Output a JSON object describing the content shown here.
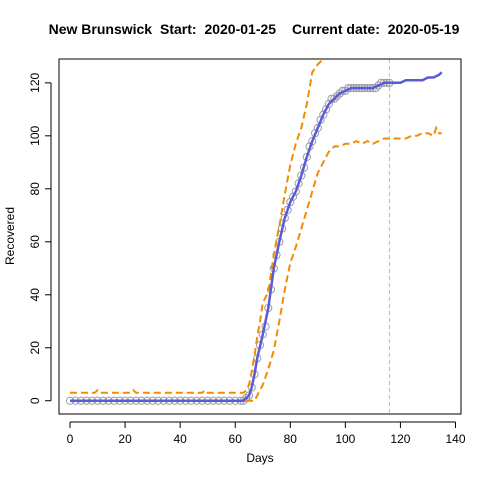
{
  "chart_data": {
    "type": "line",
    "title_parts": {
      "region": "New Brunswick",
      "start_label": "Start:",
      "start_date": "2020-01-25",
      "current_label": "Current date:",
      "current_date": "2020-05-19"
    },
    "xlabel": "Days",
    "ylabel": "Recovered",
    "xlim": [
      -4,
      142
    ],
    "ylim": [
      -5,
      129
    ],
    "x_ticks": [
      0,
      20,
      40,
      60,
      80,
      100,
      120,
      140
    ],
    "y_ticks": [
      0,
      20,
      40,
      60,
      80,
      100,
      120
    ],
    "current_day": 116,
    "colors": {
      "observed": "#9a9aaa",
      "fit": "#5b5bd6",
      "bounds": "#f28c00",
      "current_line": "#bbbbbb"
    },
    "series": [
      {
        "role": "observed",
        "x": [
          0,
          2,
          4,
          6,
          8,
          10,
          12,
          14,
          16,
          18,
          20,
          22,
          24,
          26,
          28,
          30,
          32,
          34,
          36,
          38,
          40,
          42,
          44,
          46,
          48,
          50,
          52,
          54,
          56,
          58,
          60,
          62,
          63,
          64,
          65,
          66,
          67,
          68,
          69,
          70,
          71,
          72,
          73,
          74,
          75,
          76,
          77,
          78,
          79,
          80,
          81,
          82,
          83,
          84,
          85,
          86,
          87,
          88,
          89,
          90,
          91,
          92,
          93,
          94,
          95,
          96,
          97,
          98,
          99,
          100,
          101,
          102,
          103,
          104,
          105,
          106,
          107,
          108,
          109,
          110,
          111,
          112,
          113,
          114,
          115,
          116
        ],
        "y": [
          0,
          0,
          0,
          0,
          0,
          0,
          0,
          0,
          0,
          0,
          0,
          0,
          0,
          0,
          0,
          0,
          0,
          0,
          0,
          0,
          0,
          0,
          0,
          0,
          0,
          0,
          0,
          0,
          0,
          0,
          0,
          0,
          0,
          1,
          2,
          5,
          10,
          16,
          21,
          25,
          28,
          35,
          42,
          50,
          55,
          60,
          65,
          69,
          72,
          75,
          77,
          79,
          82,
          85,
          88,
          92,
          96,
          98,
          101,
          103,
          106,
          108,
          110,
          112,
          114,
          114,
          115,
          116,
          117,
          117,
          118,
          118,
          118,
          118,
          118,
          118,
          118,
          118,
          118,
          118,
          118,
          119,
          120,
          120,
          120,
          120
        ]
      },
      {
        "role": "fit",
        "x": [
          0,
          10,
          20,
          30,
          40,
          50,
          60,
          63,
          64,
          65,
          66,
          67,
          68,
          70,
          72,
          74,
          76,
          78,
          80,
          82,
          84,
          86,
          88,
          90,
          92,
          94,
          96,
          98,
          100,
          102,
          104,
          106,
          108,
          110,
          112,
          114,
          116,
          118,
          120,
          122,
          124,
          126,
          128,
          130,
          132,
          134,
          135
        ],
        "y": [
          0,
          0,
          0,
          0,
          0,
          0,
          0,
          0,
          1,
          2,
          5,
          10,
          16,
          25,
          35,
          50,
          60,
          69,
          75,
          79,
          85,
          92,
          98,
          103,
          108,
          112,
          114,
          116,
          117,
          118,
          118,
          118,
          118,
          118,
          119,
          120,
          120,
          120,
          120,
          121,
          121,
          121,
          121,
          122,
          122,
          123,
          124
        ]
      },
      {
        "role": "upper",
        "x": [
          0,
          5,
          9,
          10,
          11,
          15,
          22,
          23,
          24,
          25,
          30,
          40,
          48,
          49,
          50,
          55,
          60,
          62,
          63,
          64,
          65,
          66,
          67,
          68,
          69,
          70,
          72,
          74,
          76,
          78,
          80,
          82,
          84,
          86,
          88,
          90,
          92,
          93
        ],
        "y": [
          3,
          3,
          3,
          4,
          3,
          3,
          3,
          4,
          3,
          3,
          3,
          3,
          3,
          4,
          3,
          3,
          3,
          3,
          3,
          4,
          6,
          11,
          17,
          24,
          30,
          37,
          41,
          55,
          66,
          78,
          89,
          97,
          103,
          112,
          124,
          127,
          129,
          131
        ]
      },
      {
        "role": "lower",
        "x": [
          0,
          10,
          20,
          30,
          40,
          50,
          60,
          62,
          63,
          64,
          65,
          66,
          67,
          68,
          70,
          72,
          74,
          76,
          78,
          80,
          82,
          84,
          86,
          88,
          90,
          92,
          94,
          96,
          98,
          100,
          102,
          104,
          106,
          108,
          110,
          112,
          114,
          116,
          118,
          120,
          122,
          124,
          126,
          128,
          130,
          132,
          133,
          134,
          135
        ],
        "y": [
          0,
          0,
          0,
          0,
          0,
          0,
          0,
          0,
          0,
          0,
          0,
          0,
          0,
          2,
          6,
          12,
          19,
          30,
          42,
          52,
          58,
          65,
          72,
          79,
          86,
          90,
          94,
          96,
          96,
          97,
          97,
          98,
          97,
          98,
          97,
          98,
          99,
          99,
          99,
          99,
          99,
          100,
          100,
          101,
          101,
          100,
          103,
          101,
          101
        ]
      }
    ]
  }
}
